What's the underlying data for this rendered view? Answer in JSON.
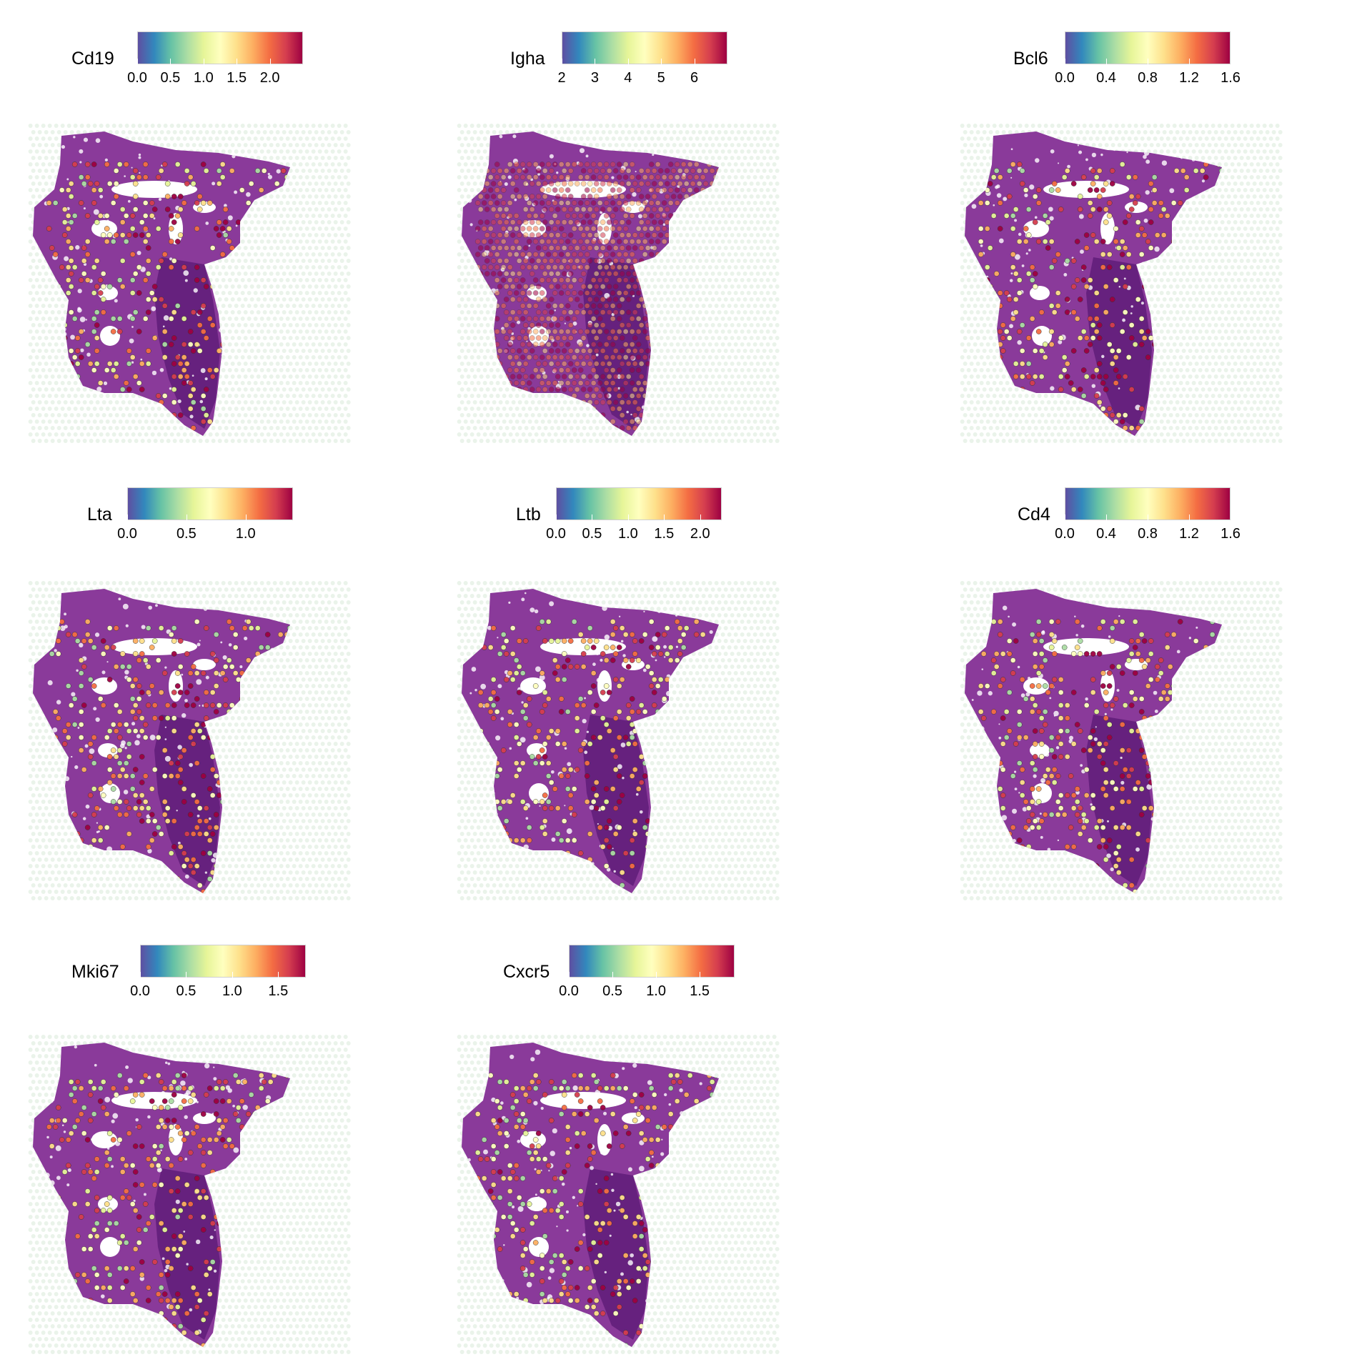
{
  "colormap": [
    "#5e4fa2",
    "#3288bd",
    "#66c2a5",
    "#abdda4",
    "#e6f598",
    "#ffffbf",
    "#fee08b",
    "#fdae61",
    "#f46d43",
    "#d53e4f",
    "#9e0142"
  ],
  "tissue_colors": {
    "tissue": "#8a3a9a",
    "dense": "#5a1a74",
    "lumen": "#ffffff",
    "background_spot": "#eaf3ea"
  },
  "chart_data": [
    {
      "type": "spatial",
      "gene": "Cd19",
      "ticks": [
        "0.0",
        "0.5",
        "1.0",
        "1.5",
        "2.0"
      ],
      "tick_values": [
        0.0,
        0.5,
        1.0,
        1.5,
        2.0
      ],
      "range": [
        0.0,
        2.5
      ]
    },
    {
      "type": "spatial",
      "gene": "Igha",
      "ticks": [
        "2",
        "3",
        "4",
        "5",
        "6"
      ],
      "tick_values": [
        2,
        3,
        4,
        5,
        6
      ],
      "range": [
        2.0,
        7.0
      ]
    },
    {
      "type": "spatial",
      "gene": "Bcl6",
      "ticks": [
        "0.0",
        "0.4",
        "0.8",
        "1.2",
        "1.6"
      ],
      "tick_values": [
        0.0,
        0.4,
        0.8,
        1.2,
        1.6
      ],
      "range": [
        0.0,
        1.6
      ]
    },
    {
      "type": "spatial",
      "gene": "Lta",
      "ticks": [
        "0.0",
        "0.5",
        "1.0"
      ],
      "tick_values": [
        0.0,
        0.5,
        1.0
      ],
      "range": [
        0.0,
        1.4
      ]
    },
    {
      "type": "spatial",
      "gene": "Ltb",
      "ticks": [
        "0.0",
        "0.5",
        "1.0",
        "1.5",
        "2.0"
      ],
      "tick_values": [
        0.0,
        0.5,
        1.0,
        1.5,
        2.0
      ],
      "range": [
        0.0,
        2.3
      ]
    },
    {
      "type": "spatial",
      "gene": "Cd4",
      "ticks": [
        "0.0",
        "0.4",
        "0.8",
        "1.2",
        "1.6"
      ],
      "tick_values": [
        0.0,
        0.4,
        0.8,
        1.2,
        1.6
      ],
      "range": [
        0.0,
        1.6
      ]
    },
    {
      "type": "spatial",
      "gene": "Mki67",
      "ticks": [
        "0.0",
        "0.5",
        "1.0",
        "1.5"
      ],
      "tick_values": [
        0.0,
        0.5,
        1.0,
        1.5
      ],
      "range": [
        0.0,
        1.8
      ]
    },
    {
      "type": "spatial",
      "gene": "Cxcr5",
      "ticks": [
        "0.0",
        "0.5",
        "1.0",
        "1.5"
      ],
      "tick_values": [
        0.0,
        0.5,
        1.0,
        1.5
      ],
      "range": [
        0.0,
        1.9
      ]
    }
  ]
}
